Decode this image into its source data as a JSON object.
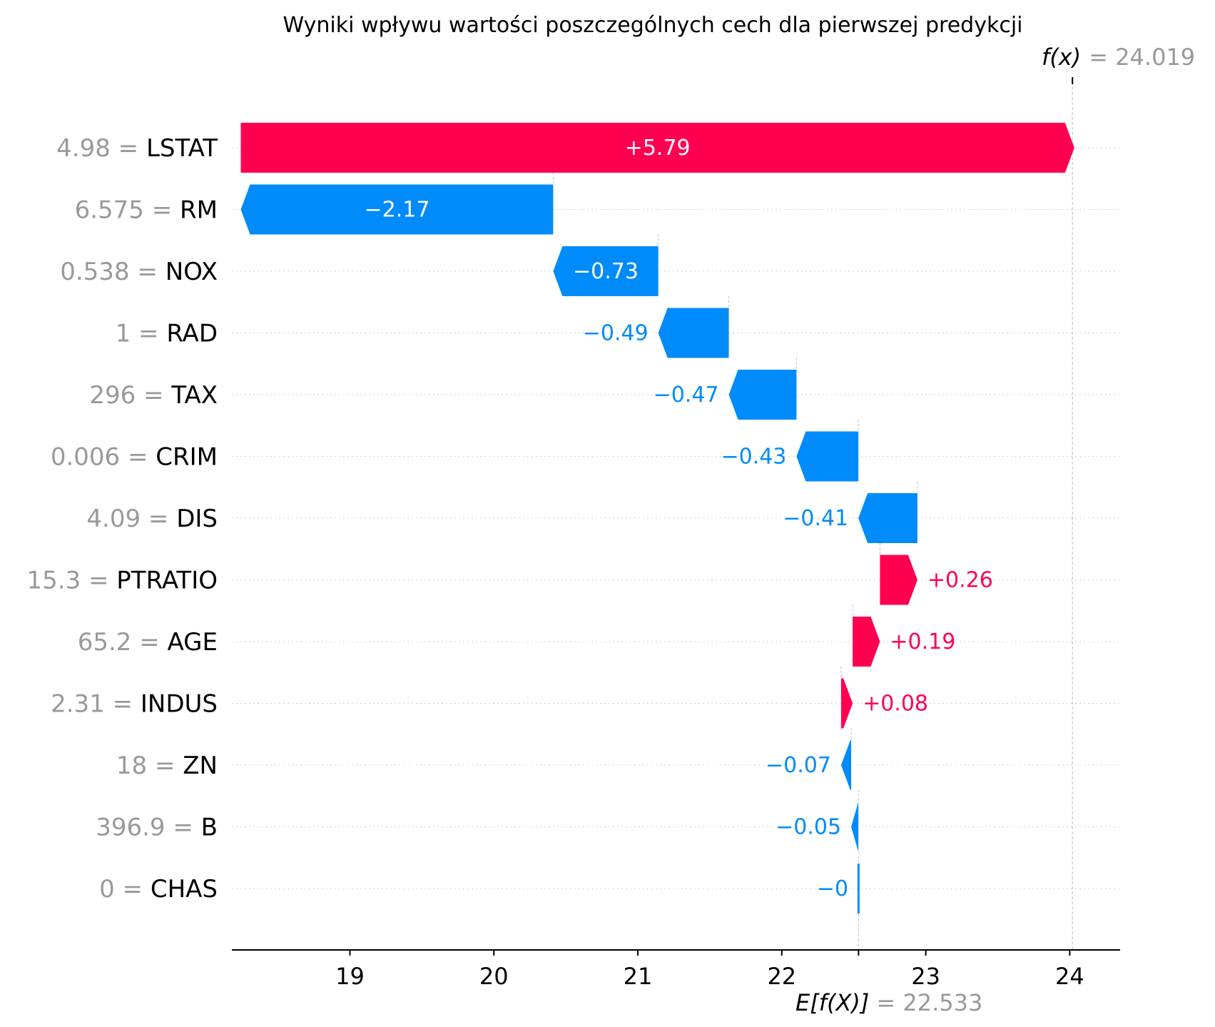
{
  "chart_data": {
    "type": "waterfall",
    "title": "Wyniki wpływu wartości poszczególnych cech dla pierwszej predykcji",
    "base_value": 22.533,
    "final_value": 24.019,
    "fx_label": "f(x)",
    "fx_value_text": "= 24.019",
    "efx_label": "E[f(X)]",
    "efx_value_text": "= 22.533",
    "xlim": [
      18.18,
      24.35
    ],
    "xticks": [
      19,
      20,
      21,
      22,
      23,
      24
    ],
    "grid": "horizontal dotted",
    "colors": {
      "positive": "#ff0051",
      "negative": "#008bfb",
      "feature_value": "#999999",
      "feature_name": "#000000"
    },
    "features": [
      {
        "value_text": "4.98",
        "name": "LSTAT",
        "shap": 5.79,
        "label": "+5.79"
      },
      {
        "value_text": "6.575",
        "name": "RM",
        "shap": -2.17,
        "label": "−2.17"
      },
      {
        "value_text": "0.538",
        "name": "NOX",
        "shap": -0.73,
        "label": "−0.73"
      },
      {
        "value_text": "1",
        "name": "RAD",
        "shap": -0.49,
        "label": "−0.49"
      },
      {
        "value_text": "296",
        "name": "TAX",
        "shap": -0.47,
        "label": "−0.47"
      },
      {
        "value_text": "0.006",
        "name": "CRIM",
        "shap": -0.43,
        "label": "−0.43"
      },
      {
        "value_text": "4.09",
        "name": "DIS",
        "shap": -0.41,
        "label": "−0.41"
      },
      {
        "value_text": "15.3",
        "name": "PTRATIO",
        "shap": 0.26,
        "label": "+0.26"
      },
      {
        "value_text": "65.2",
        "name": "AGE",
        "shap": 0.19,
        "label": "+0.19"
      },
      {
        "value_text": "2.31",
        "name": "INDUS",
        "shap": 0.08,
        "label": "+0.08"
      },
      {
        "value_text": "18",
        "name": "ZN",
        "shap": -0.07,
        "label": "−0.07"
      },
      {
        "value_text": "396.9",
        "name": "B",
        "shap": -0.05,
        "label": "−0.05"
      },
      {
        "value_text": "0",
        "name": "CHAS",
        "shap": -0.001,
        "label": "−0"
      }
    ]
  }
}
